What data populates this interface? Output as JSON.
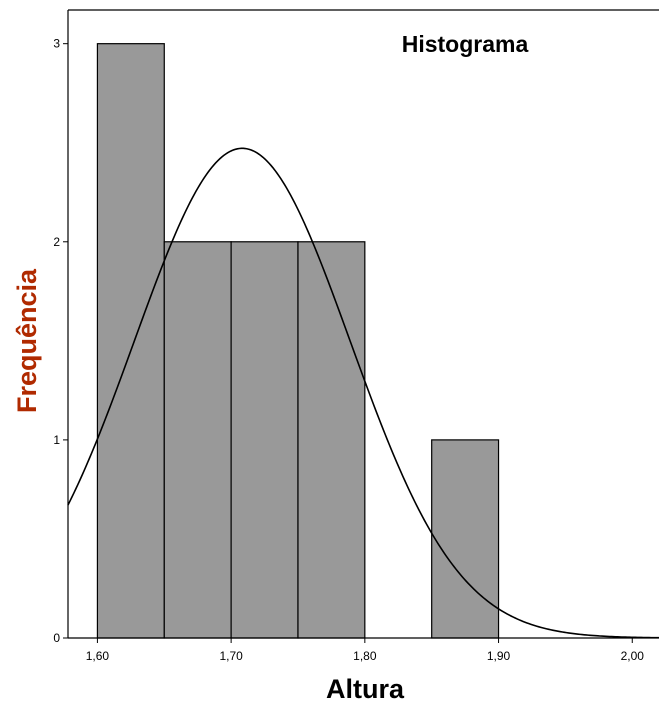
{
  "chart_data": {
    "type": "histogram",
    "title": "Histograma",
    "xlabel": "Altura",
    "ylabel": "Frequência",
    "bins": [
      {
        "start": 1.6,
        "end": 1.65,
        "count": 3
      },
      {
        "start": 1.65,
        "end": 1.7,
        "count": 2
      },
      {
        "start": 1.7,
        "end": 1.75,
        "count": 2
      },
      {
        "start": 1.75,
        "end": 1.8,
        "count": 2
      },
      {
        "start": 1.85,
        "end": 1.9,
        "count": 1
      }
    ],
    "xlim": [
      1.578,
      2.02
    ],
    "ylim": [
      0,
      3.17
    ],
    "xticks": [
      {
        "value": 1.6,
        "label": "1,60"
      },
      {
        "value": 1.7,
        "label": "1,70"
      },
      {
        "value": 1.8,
        "label": "1,80"
      },
      {
        "value": 1.9,
        "label": "1,90"
      },
      {
        "value": 2.0,
        "label": "2,00"
      }
    ],
    "yticks": [
      {
        "value": 0,
        "label": "0"
      },
      {
        "value": 1,
        "label": "1"
      },
      {
        "value": 2,
        "label": "2"
      },
      {
        "value": 3,
        "label": "3"
      }
    ],
    "normal_curve": {
      "mean": 1.7083,
      "sd": 0.0807,
      "n": 10,
      "bin_width": 0.05
    },
    "bar_color": "#999999",
    "bar_edge_color": "#000000",
    "curve_color": "#000000",
    "ylabel_color": "#b02a00"
  }
}
